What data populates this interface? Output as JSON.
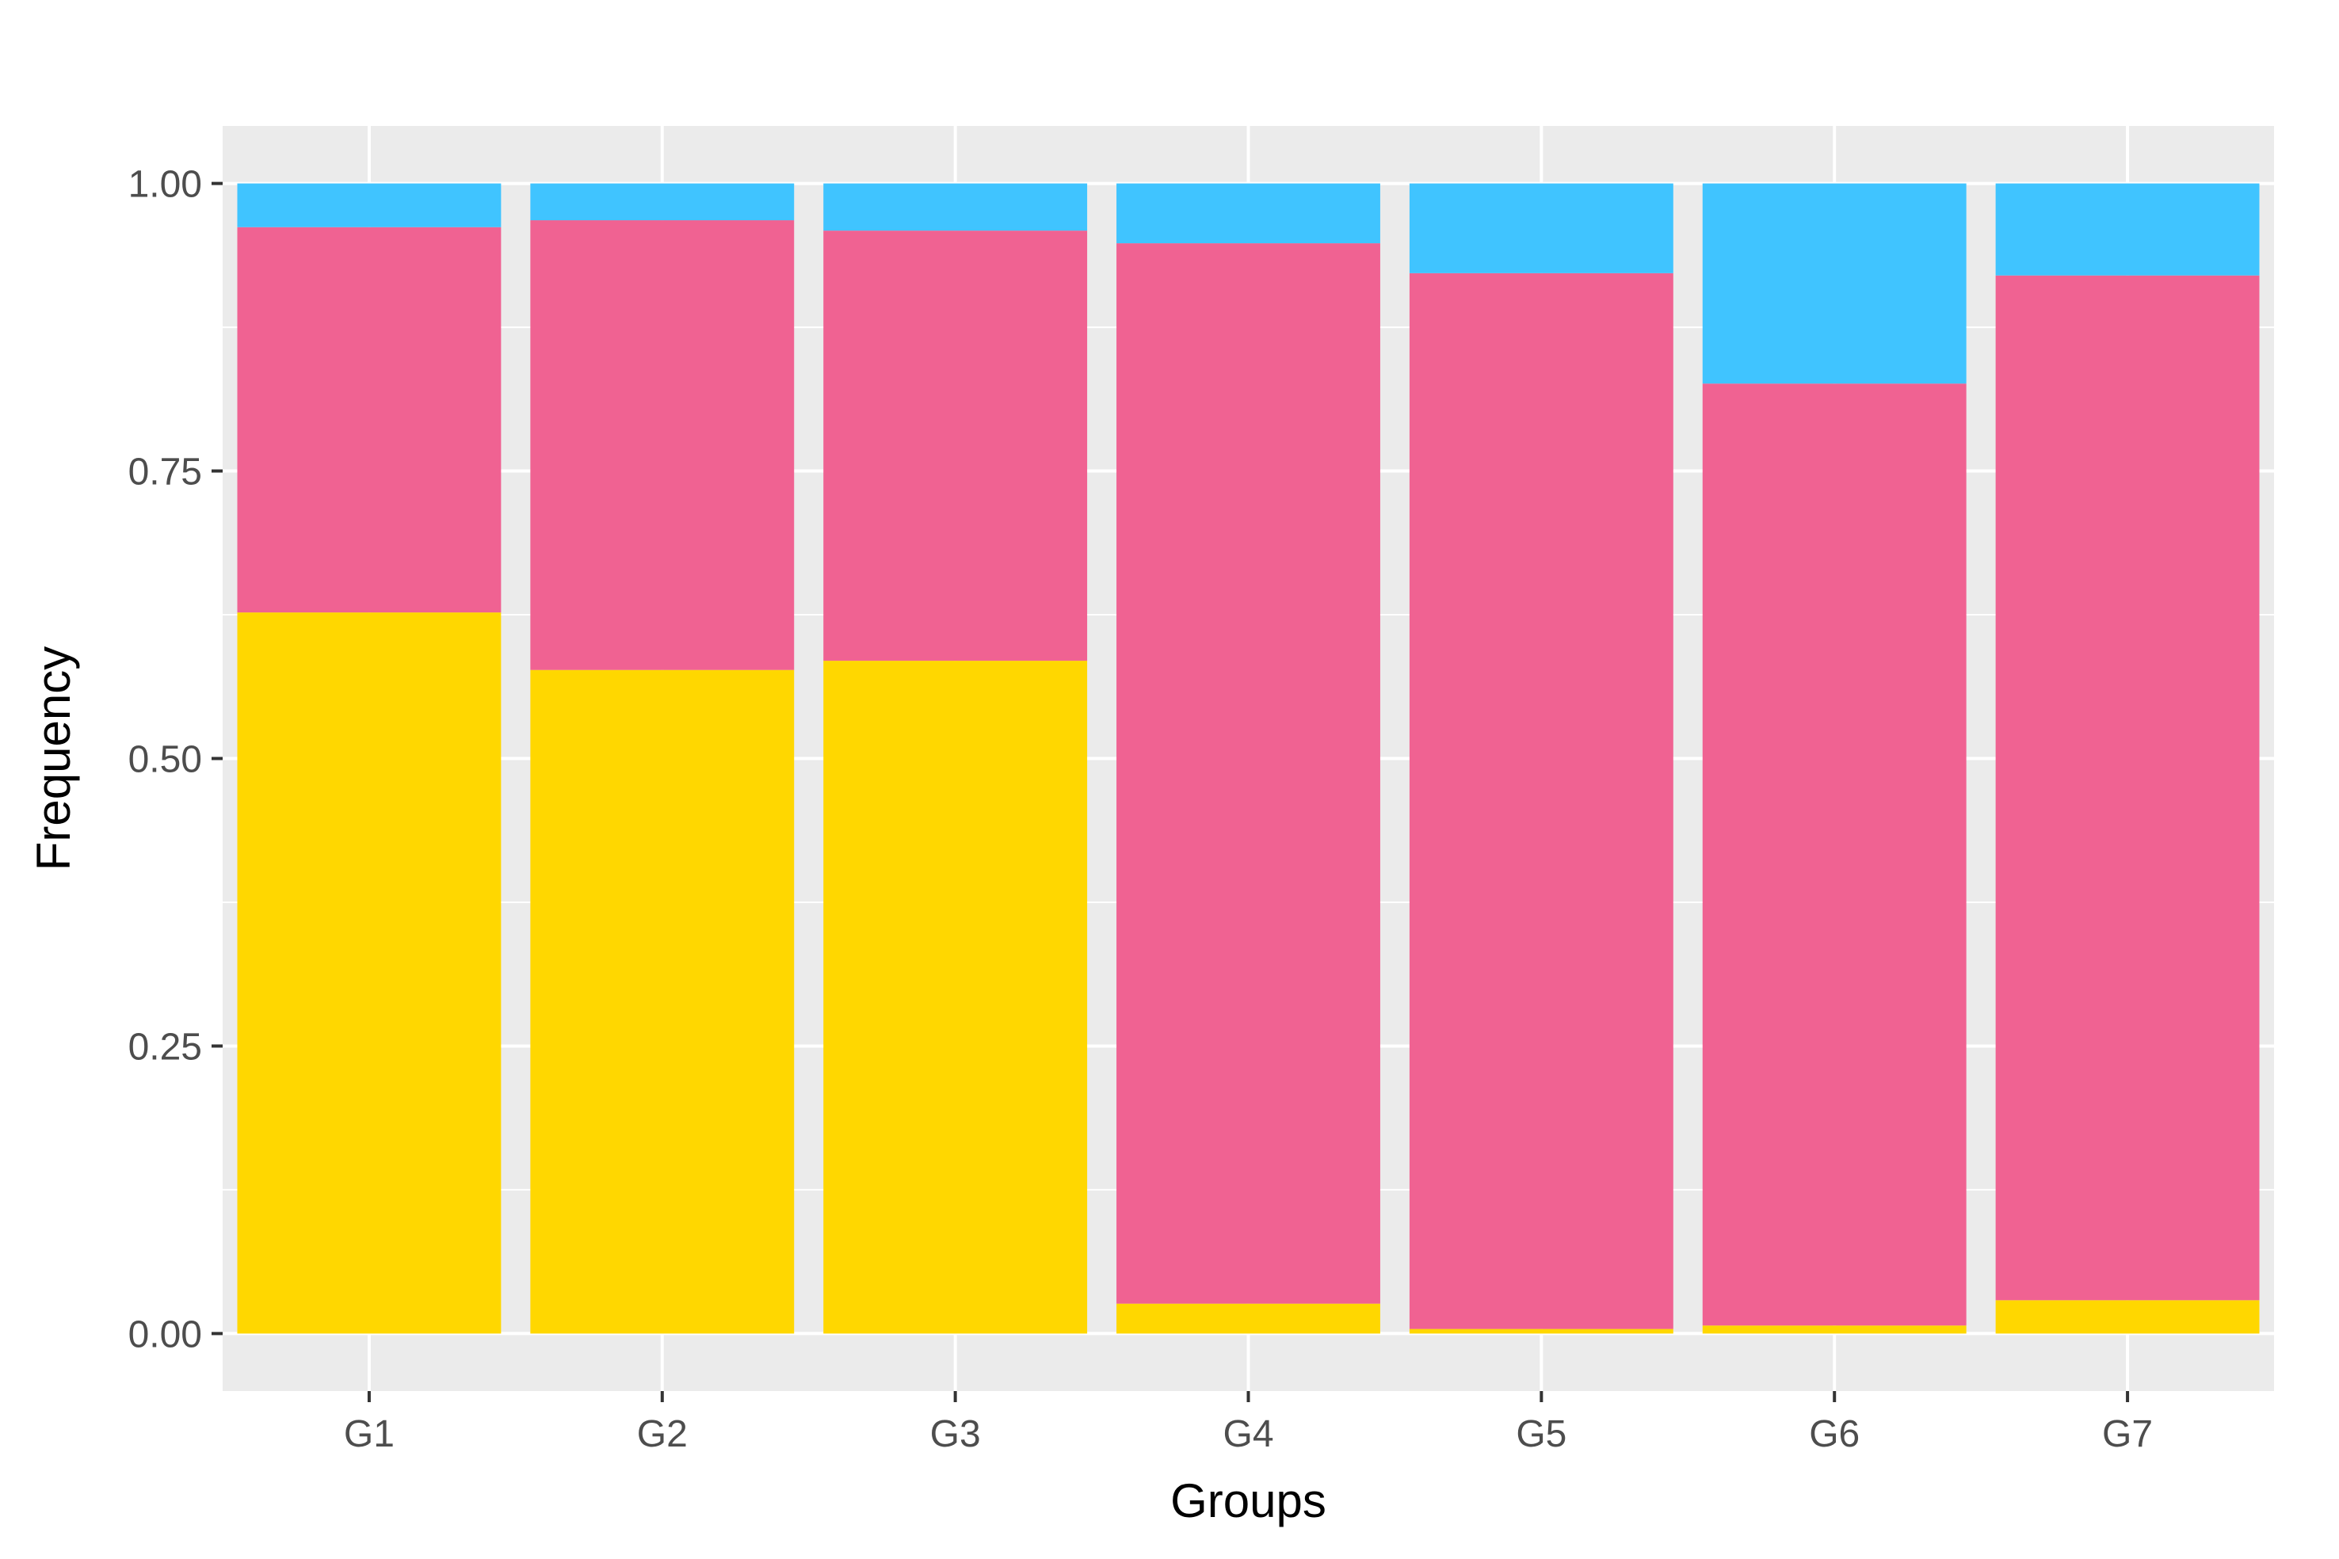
{
  "chart_data": {
    "type": "bar",
    "stacked": true,
    "categories": [
      "G1",
      "G2",
      "G3",
      "G4",
      "G5",
      "G6",
      "G7"
    ],
    "series": [
      {
        "color": "#FFD700",
        "values": [
          0.627,
          0.577,
          0.585,
          0.026,
          0.004,
          0.007,
          0.029
        ]
      },
      {
        "color": "#F06292",
        "values": [
          0.335,
          0.391,
          0.374,
          0.922,
          0.918,
          0.819,
          0.891
        ]
      },
      {
        "color": "#40C4FF",
        "values": [
          0.038,
          0.032,
          0.041,
          0.052,
          0.078,
          0.174,
          0.08
        ]
      }
    ],
    "xlabel": "Groups",
    "ylabel": "Frequency",
    "ylim": [
      -0.05,
      1.05
    ],
    "yticks": [
      0,
      0.25,
      0.5,
      0.75,
      1.0
    ],
    "ytick_labels": [
      "0.00",
      "0.25",
      "0.50",
      "0.75",
      "1.00"
    ],
    "grid": true,
    "panel_background": "#EBEBEB",
    "grid_color": "#FFFFFF"
  }
}
